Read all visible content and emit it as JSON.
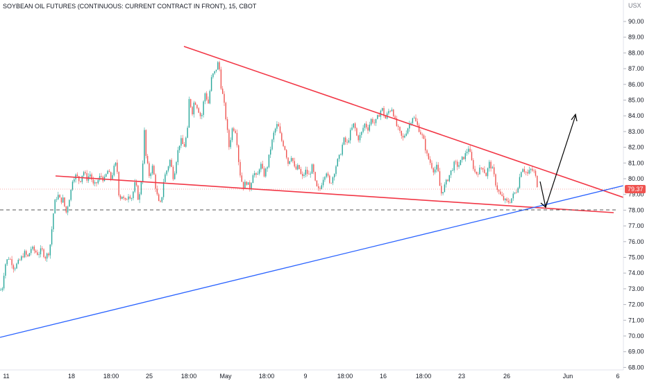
{
  "chart_data": {
    "type": "candlestick",
    "title": "SOYBEAN OIL FUTURES (CONTINUOUS: CURRENT CONTRACT IN FRONT), 15, CBOT",
    "currency": "USX",
    "ylim": [
      68,
      91
    ],
    "yticks": [
      "68.00",
      "69.00",
      "70.00",
      "71.00",
      "72.00",
      "73.00",
      "74.00",
      "75.00",
      "76.00",
      "77.00",
      "78.00",
      "79.00",
      "80.00",
      "81.00",
      "82.00",
      "83.00",
      "84.00",
      "85.00",
      "86.00",
      "87.00",
      "88.00",
      "89.00",
      "90.00"
    ],
    "xticks": [
      "11",
      "18",
      "18:00",
      "25",
      "18:00",
      "May",
      "18:00",
      "9",
      "18:00",
      "16",
      "18:00",
      "23",
      "26",
      "Jun",
      "6"
    ],
    "last_price": "79.37",
    "colors": {
      "up": "#26a69a",
      "down": "#ef5350",
      "trend": "#f23645",
      "support": "#2962ff",
      "arrow": "#000000",
      "dashed": "#555555"
    },
    "price_path": [
      [
        0,
        72.9
      ],
      [
        3,
        73.0
      ],
      [
        7,
        74.5
      ],
      [
        12,
        75.0
      ],
      [
        16,
        74.8
      ],
      [
        20,
        74.3
      ],
      [
        25,
        74.6
      ],
      [
        30,
        74.9
      ],
      [
        35,
        75.3
      ],
      [
        40,
        75.0
      ],
      [
        45,
        75.6
      ],
      [
        50,
        75.4
      ],
      [
        55,
        75.2
      ],
      [
        60,
        75.5
      ],
      [
        65,
        75.0
      ],
      [
        70,
        75.3
      ],
      [
        73,
        76.0
      ],
      [
        76,
        77.5
      ],
      [
        79,
        78.5
      ],
      [
        83,
        79.0
      ],
      [
        87,
        78.6
      ],
      [
        91,
        78.7
      ],
      [
        95,
        77.8
      ],
      [
        99,
        78.6
      ],
      [
        102,
        79.2
      ],
      [
        105,
        80.1
      ],
      [
        110,
        80.2
      ],
      [
        115,
        79.8
      ],
      [
        120,
        80.5
      ],
      [
        125,
        80.0
      ],
      [
        130,
        80.3
      ],
      [
        135,
        79.5
      ],
      [
        140,
        79.8
      ],
      [
        145,
        80.2
      ],
      [
        150,
        79.9
      ],
      [
        155,
        80.5
      ],
      [
        160,
        80.0
      ],
      [
        165,
        80.8
      ],
      [
        168,
        81.0
      ],
      [
        172,
        78.6
      ],
      [
        175,
        79.0
      ],
      [
        180,
        78.5
      ],
      [
        185,
        79.0
      ],
      [
        190,
        78.8
      ],
      [
        195,
        79.8
      ],
      [
        200,
        78.5
      ],
      [
        205,
        80.5
      ],
      [
        208,
        83.0
      ],
      [
        210,
        81.5
      ],
      [
        215,
        80.2
      ],
      [
        220,
        80.8
      ],
      [
        225,
        79.2
      ],
      [
        230,
        78.2
      ],
      [
        233,
        78.8
      ],
      [
        236,
        80.0
      ],
      [
        240,
        80.5
      ],
      [
        245,
        81.2
      ],
      [
        250,
        80.0
      ],
      [
        255,
        81.5
      ],
      [
        260,
        82.5
      ],
      [
        265,
        82.0
      ],
      [
        270,
        83.0
      ],
      [
        273,
        85.5
      ],
      [
        276,
        84.0
      ],
      [
        280,
        85.0
      ],
      [
        285,
        84.5
      ],
      [
        290,
        83.8
      ],
      [
        295,
        85.5
      ],
      [
        300,
        84.8
      ],
      [
        305,
        86.5
      ],
      [
        310,
        86.8
      ],
      [
        315,
        87.5
      ],
      [
        318,
        86.0
      ],
      [
        322,
        85.0
      ],
      [
        325,
        84.0
      ],
      [
        330,
        82.0
      ],
      [
        335,
        83.3
      ],
      [
        340,
        83.0
      ],
      [
        345,
        80.5
      ],
      [
        350,
        79.5
      ],
      [
        355,
        79.8
      ],
      [
        360,
        79.4
      ],
      [
        365,
        80.5
      ],
      [
        370,
        80.0
      ],
      [
        375,
        81.0
      ],
      [
        380,
        80.2
      ],
      [
        385,
        80.8
      ],
      [
        390,
        82.0
      ],
      [
        395,
        83.0
      ],
      [
        400,
        83.5
      ],
      [
        405,
        82.5
      ],
      [
        410,
        82.0
      ],
      [
        415,
        81.0
      ],
      [
        420,
        81.5
      ],
      [
        425,
        80.5
      ],
      [
        430,
        80.8
      ],
      [
        435,
        80.0
      ],
      [
        440,
        80.5
      ],
      [
        445,
        80.2
      ],
      [
        450,
        80.8
      ],
      [
        455,
        79.5
      ],
      [
        460,
        79.2
      ],
      [
        465,
        80.0
      ],
      [
        470,
        80.5
      ],
      [
        475,
        79.6
      ],
      [
        480,
        80.2
      ],
      [
        485,
        81.0
      ],
      [
        490,
        81.5
      ],
      [
        495,
        82.5
      ],
      [
        500,
        82.2
      ],
      [
        505,
        83.0
      ],
      [
        510,
        83.5
      ],
      [
        515,
        82.5
      ],
      [
        520,
        82.8
      ],
      [
        525,
        83.5
      ],
      [
        530,
        83.2
      ],
      [
        535,
        83.8
      ],
      [
        540,
        83.5
      ],
      [
        545,
        84.0
      ],
      [
        550,
        84.5
      ],
      [
        555,
        83.8
      ],
      [
        560,
        84.3
      ],
      [
        565,
        84.5
      ],
      [
        570,
        83.5
      ],
      [
        575,
        83.0
      ],
      [
        580,
        82.5
      ],
      [
        585,
        83.0
      ],
      [
        590,
        83.5
      ],
      [
        595,
        84.0
      ],
      [
        600,
        83.5
      ],
      [
        605,
        83.0
      ],
      [
        610,
        82.5
      ],
      [
        615,
        81.5
      ],
      [
        620,
        81.0
      ],
      [
        625,
        80.5
      ],
      [
        630,
        80.8
      ],
      [
        635,
        79.0
      ],
      [
        640,
        79.5
      ],
      [
        645,
        80.0
      ],
      [
        650,
        80.5
      ],
      [
        655,
        81.0
      ],
      [
        660,
        80.8
      ],
      [
        665,
        81.2
      ],
      [
        670,
        81.5
      ],
      [
        675,
        82.0
      ],
      [
        680,
        81.0
      ],
      [
        685,
        80.3
      ],
      [
        690,
        80.5
      ],
      [
        695,
        80.8
      ],
      [
        700,
        80.2
      ],
      [
        705,
        81.0
      ],
      [
        710,
        80.5
      ],
      [
        715,
        79.5
      ],
      [
        720,
        79.0
      ],
      [
        725,
        78.7
      ],
      [
        730,
        78.5
      ],
      [
        735,
        78.6
      ],
      [
        740,
        79.0
      ],
      [
        745,
        79.3
      ],
      [
        748,
        80.0
      ],
      [
        752,
        80.8
      ],
      [
        756,
        80.5
      ],
      [
        760,
        80.3
      ],
      [
        765,
        80.6
      ],
      [
        770,
        80.4
      ],
      [
        775,
        79.37
      ]
    ]
  }
}
